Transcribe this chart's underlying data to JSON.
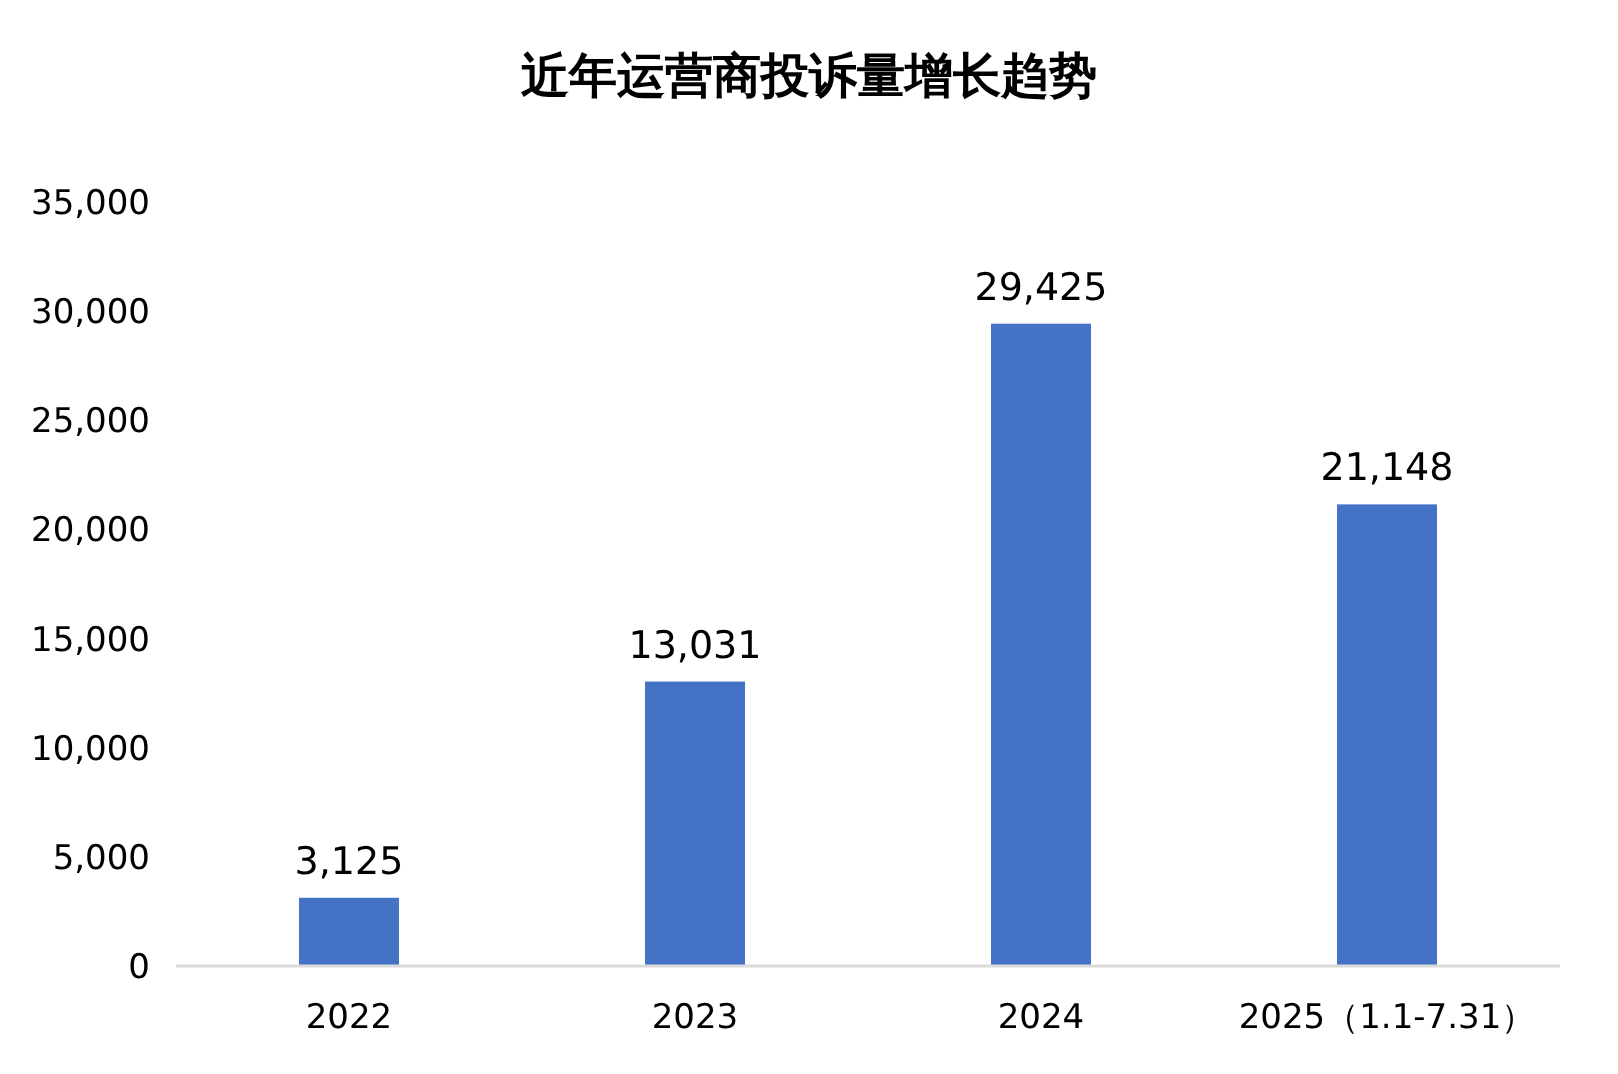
{
  "chart_data": {
    "type": "bar",
    "title": "近年运营商投诉量增长趋势",
    "categories": [
      "2022",
      "2023",
      "2024",
      "2025（1.1-7.31）"
    ],
    "values": [
      3125,
      13031,
      29425,
      21148
    ],
    "value_labels": [
      "3,125",
      "13,031",
      "29,425",
      "21,148"
    ],
    "color": "#4472c4",
    "ylim": [
      0,
      35000
    ],
    "yticks": [
      {
        "value": 0,
        "label": "0"
      },
      {
        "value": 5000,
        "label": "5,000"
      },
      {
        "value": 10000,
        "label": "10,000"
      },
      {
        "value": 15000,
        "label": "15,000"
      },
      {
        "value": 20000,
        "label": "20,000"
      },
      {
        "value": 25000,
        "label": "25,000"
      },
      {
        "value": 30000,
        "label": "30,000"
      },
      {
        "value": 35000,
        "label": "35,000"
      }
    ],
    "grid": false
  }
}
